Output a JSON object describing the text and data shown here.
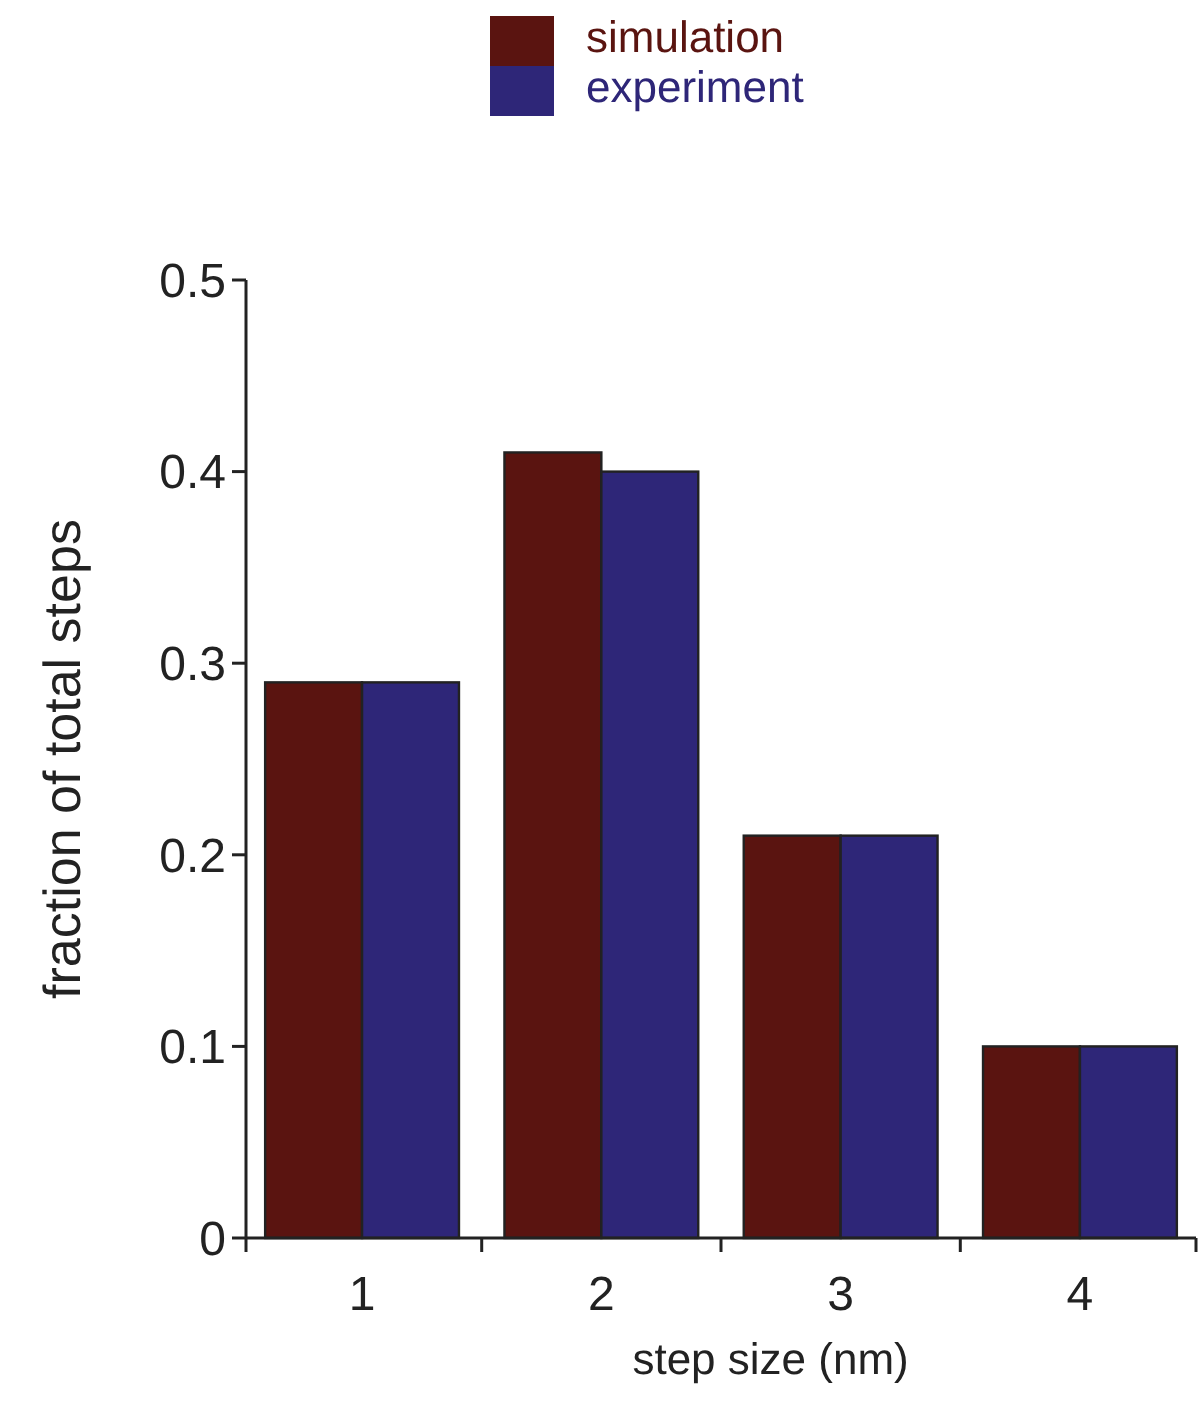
{
  "chart_data": {
    "type": "bar",
    "xlabel": "step size (nm)",
    "ylabel": "fraction of total steps",
    "categories": [
      "1",
      "2",
      "3",
      "4"
    ],
    "series": [
      {
        "name": "simulation",
        "color": "#5a1410",
        "values": [
          0.29,
          0.41,
          0.21,
          0.1
        ]
      },
      {
        "name": "experiment",
        "color": "#2e2678",
        "values": [
          0.29,
          0.4,
          0.21,
          0.1
        ]
      }
    ],
    "ylim": [
      0,
      0.5
    ],
    "yticks": [
      0,
      0.1,
      0.2,
      0.3,
      0.4,
      0.5
    ],
    "grid": false,
    "legend": "top"
  }
}
